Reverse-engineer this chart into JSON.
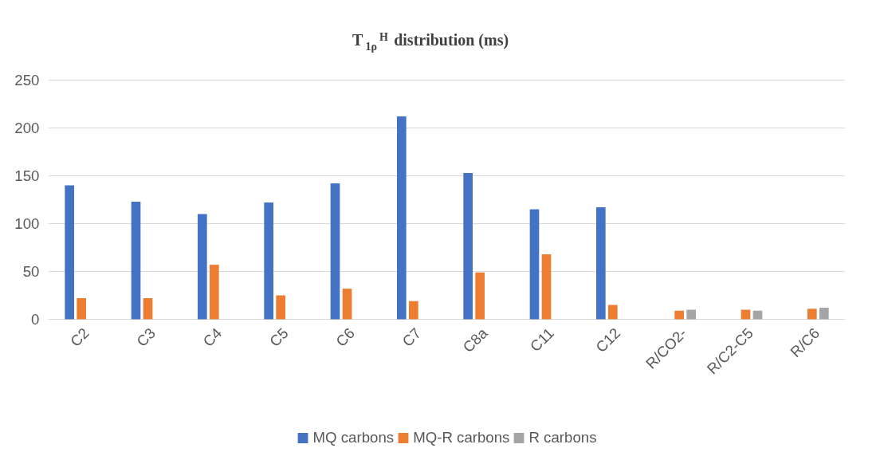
{
  "chart_data": {
    "type": "bar",
    "title": "T$_{1ρ}$$^{H}$ distribution (ms)",
    "categories": [
      "C2",
      "C3",
      "C4",
      "C5",
      "C6",
      "C7",
      "C8a",
      "C11",
      "C12",
      "R/CO2-",
      "R/C2-C5",
      "R/C6"
    ],
    "series": [
      {
        "name": "MQ carbons",
        "color": "#4472c4",
        "values": [
          140,
          123,
          110,
          122,
          142,
          212,
          153,
          115,
          117,
          null,
          null,
          null
        ]
      },
      {
        "name": "MQ-R carbons",
        "color": "#ed7d31",
        "values": [
          22,
          22,
          57,
          25,
          32,
          19,
          49,
          68,
          15,
          9,
          10,
          11
        ]
      },
      {
        "name": "R carbons",
        "color": "#a5a5a5",
        "values": [
          null,
          null,
          null,
          null,
          null,
          null,
          null,
          null,
          null,
          10,
          9,
          12
        ]
      }
    ],
    "ylim": [
      0,
      250
    ],
    "yticks": [
      0,
      50,
      100,
      150,
      200,
      250
    ],
    "grid": "y",
    "legend": "bottom"
  }
}
